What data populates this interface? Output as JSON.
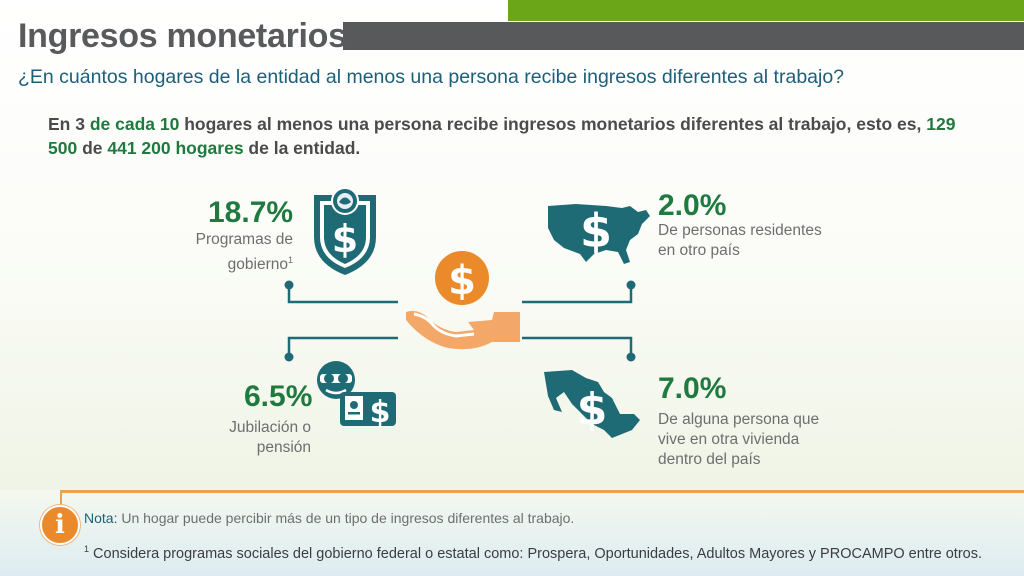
{
  "header": {
    "title": "Ingresos monetarios",
    "question": "¿En cuántos hogares de la entidad al menos una persona recibe ingresos diferentes al trabajo?"
  },
  "lead": {
    "p1": "En 3 ",
    "p2": "de cada 10",
    "p3": " hogares al menos una persona recibe ingresos monetarios diferentes al trabajo, esto es, ",
    "p4": "129 500",
    "p5": " de ",
    "p6": "441 200 hogares",
    "p7": " de la entidad."
  },
  "stats": [
    {
      "percent": "18.7%",
      "line1": "Programas de",
      "line2": "gobierno",
      "sup": "1",
      "icon": "government-shield-dollar-icon"
    },
    {
      "percent": "2.0%",
      "line1": "De personas residentes",
      "line2": "en otro país",
      "icon": "usa-map-dollar-icon"
    },
    {
      "percent": "6.5%",
      "line1": "Jubilación o",
      "line2": "pensión",
      "icon": "retiree-card-dollar-icon"
    },
    {
      "percent": "7.0%",
      "line1": "De alguna persona que",
      "line2": "vive en otra vivienda",
      "line3": "dentro del país",
      "icon": "mexico-map-dollar-icon"
    }
  ],
  "center_icon": "hand-receiving-coin-icon",
  "footer": {
    "info_icon": "i",
    "note_label": "Nota:",
    "note_text": " Un hogar puede percibir más de un tipo de ingresos diferentes al trabajo.",
    "footnote_sup": "1",
    "footnote_text": " Considera programas sociales del gobierno federal o estatal como: Prospera, Oportunidades, Adultos Mayores y PROCAMPO entre otros."
  },
  "colors": {
    "green_bar": "#6aa618",
    "gray_bar": "#58595b",
    "title": "#595a5c",
    "question": "#1c5f79",
    "percent": "#1f7a3f",
    "teal_icon": "#1f6b75",
    "orange": "#ea8a2b",
    "hand": "#f3a86a"
  }
}
